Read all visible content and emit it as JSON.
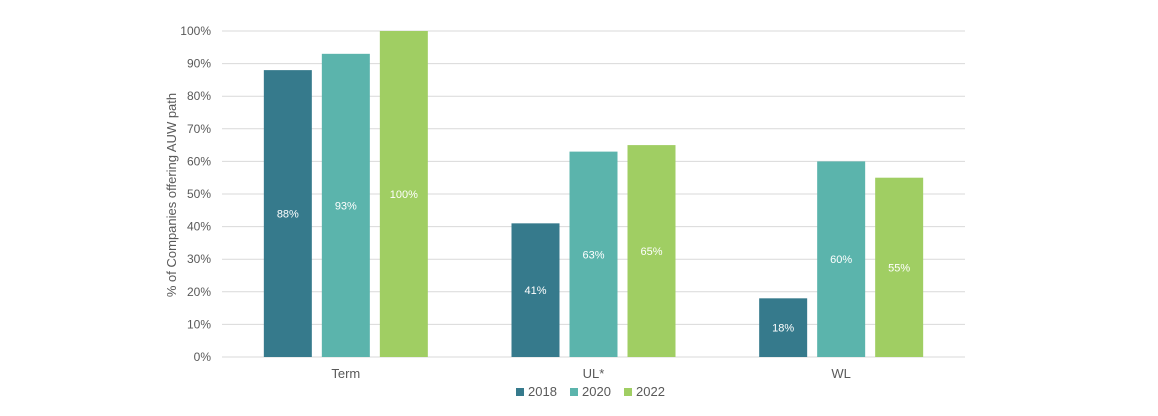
{
  "chart_data": {
    "type": "bar",
    "categories": [
      "Term",
      "UL*",
      "WL"
    ],
    "series": [
      {
        "name": "2018",
        "color": "#367A8C",
        "values": [
          88,
          41,
          18
        ],
        "labels": [
          "88%",
          "41%",
          "18%"
        ]
      },
      {
        "name": "2020",
        "color": "#5BB4AC",
        "values": [
          93,
          63,
          60
        ],
        "labels": [
          "93%",
          "63%",
          "60%"
        ]
      },
      {
        "name": "2022",
        "color": "#A0CE63",
        "values": [
          100,
          65,
          55
        ],
        "labels": [
          "100%",
          "65%",
          "55%"
        ]
      }
    ],
    "ylabel": "% of Companies offering AUW path",
    "xlabel": "",
    "title": "",
    "ylim": [
      0,
      100
    ],
    "yticks": [
      0,
      10,
      20,
      30,
      40,
      50,
      60,
      70,
      80,
      90,
      100
    ],
    "ytick_labels": [
      "0%",
      "10%",
      "20%",
      "30%",
      "40%",
      "50%",
      "60%",
      "70%",
      "80%",
      "90%",
      "100%"
    ],
    "grid": true,
    "legend_position": "bottom"
  },
  "colors": {
    "gridline": "#D9D9D9",
    "text": "#595959"
  }
}
